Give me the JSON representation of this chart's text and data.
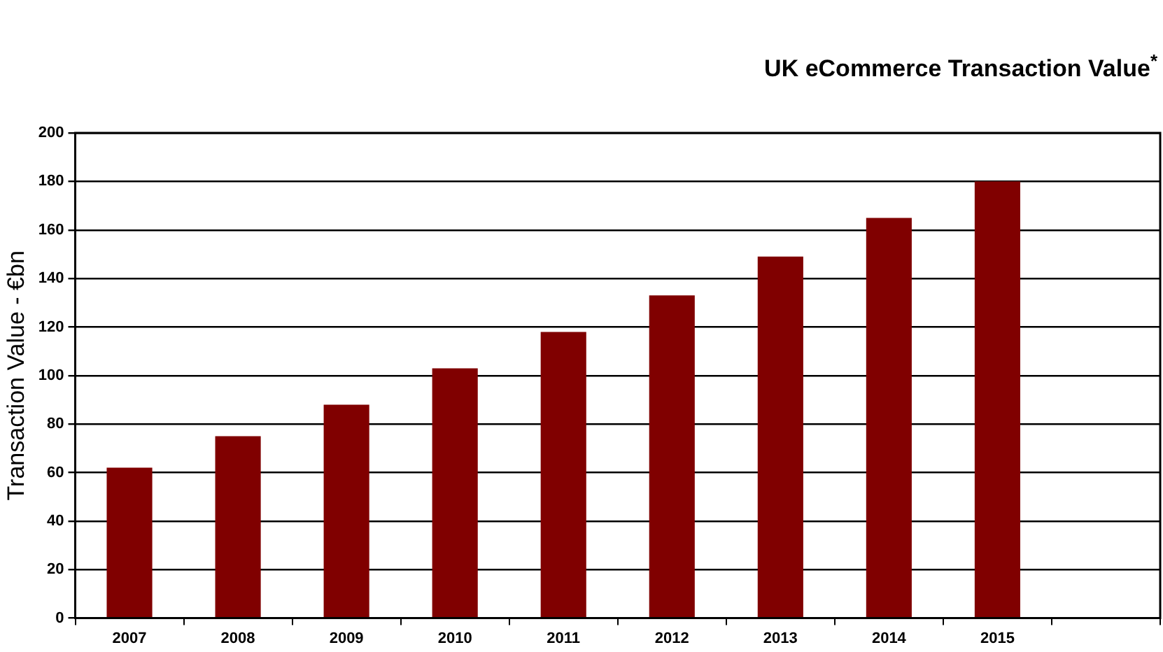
{
  "chart_data": {
    "type": "bar",
    "title": "UK eCommerce Transaction Value$^{*}$",
    "ylabel": "Transaction Value - €bn",
    "categories": [
      "2007",
      "2008",
      "2009",
      "2010",
      "2011",
      "2012",
      "2013",
      "2014",
      "2015",
      null
    ],
    "values": [
      62,
      75,
      88,
      103,
      118,
      133,
      149,
      165,
      180,
      null
    ],
    "color": "#800000",
    "ylim": [
      0,
      200
    ],
    "yticks": [
      0,
      20,
      40,
      60,
      80,
      100,
      120,
      140,
      160,
      180,
      200
    ],
    "grid": "y",
    "legend": false
  }
}
